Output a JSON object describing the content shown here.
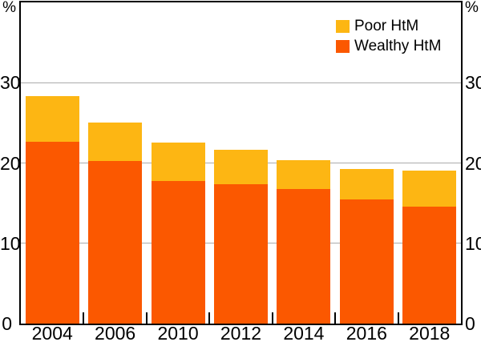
{
  "chart_data": {
    "type": "bar",
    "stacked": true,
    "title": "",
    "categories": [
      "2004",
      "2006",
      "2010",
      "2012",
      "2014",
      "2016",
      "2018"
    ],
    "series": [
      {
        "name": "Wealthy HtM",
        "color": "#FB5800",
        "values": [
          22.6,
          20.3,
          17.8,
          17.4,
          16.8,
          15.5,
          14.6
        ]
      },
      {
        "name": "Poor HtM",
        "color": "#FDB613",
        "values": [
          5.7,
          4.7,
          4.7,
          4.2,
          3.6,
          3.8,
          4.5
        ]
      }
    ],
    "stack_totals": [
      28.3,
      25.0,
      22.5,
      21.6,
      20.4,
      19.3,
      19.1
    ],
    "unit": "%",
    "ylim": [
      0,
      40
    ],
    "yticks": [
      0,
      10,
      20,
      30
    ],
    "grid": true,
    "legend_position": "top-right"
  },
  "axes": {
    "left_unit": "%",
    "right_unit": "%",
    "tick_labels": [
      "0",
      "10",
      "20",
      "30"
    ]
  },
  "legend": {
    "items": [
      {
        "label": "Poor HtM",
        "color": "#FDB613"
      },
      {
        "label": "Wealthy HtM",
        "color": "#FB5800"
      }
    ]
  },
  "colors": {
    "poor": "#FDB613",
    "wealthy": "#FB5800",
    "gridline": "#ABABAB",
    "axis": "#000000",
    "background": "#FFFFFF"
  }
}
